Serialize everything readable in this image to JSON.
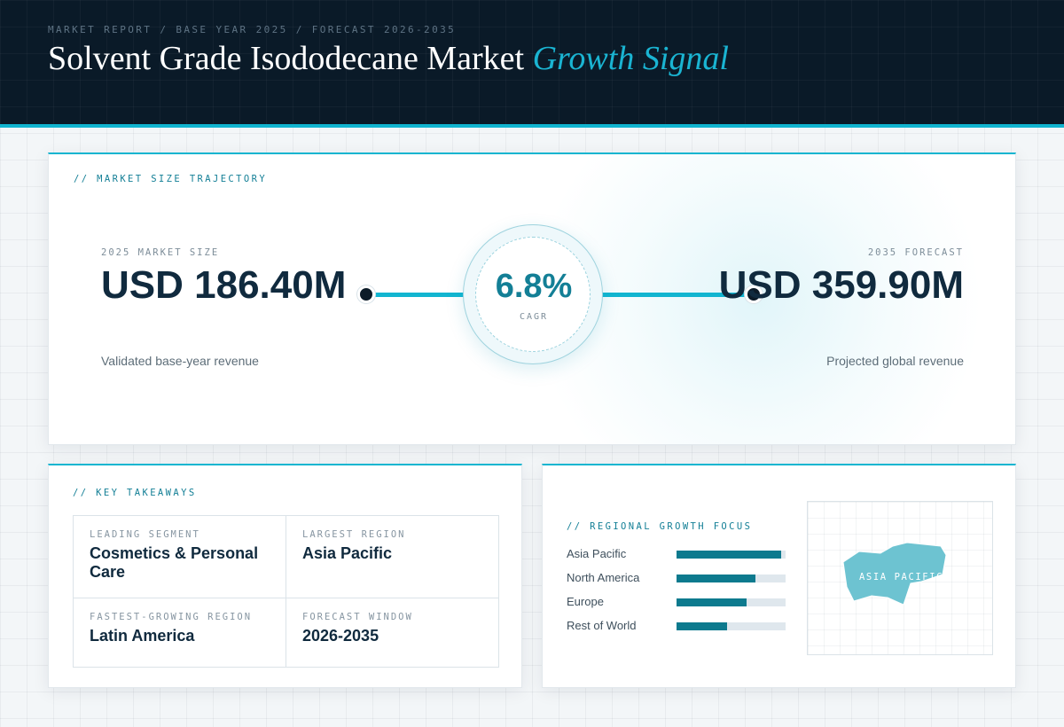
{
  "header": {
    "breadcrumb": "MARKET REPORT / BASE YEAR 2025 / FORECAST 2026-2035",
    "title_main": "Solvent Grade Isododecane Market ",
    "title_accent": "Growth Signal"
  },
  "trajectory": {
    "section_label": "// MARKET SIZE TRAJECTORY",
    "base": {
      "caption": "2025 MARKET SIZE",
      "value": "USD 186.40M",
      "subtitle": "Validated base-year revenue"
    },
    "forecast": {
      "caption": "2035 FORECAST",
      "value": "USD 359.90M",
      "subtitle": "Projected global revenue"
    },
    "cagr": {
      "value": "6.8%",
      "label": "CAGR"
    }
  },
  "takeaways": {
    "section_label": "// KEY TAKEAWAYS",
    "items": [
      {
        "caption": "LEADING SEGMENT",
        "value": "Cosmetics & Personal Care"
      },
      {
        "caption": "LARGEST REGION",
        "value": "Asia Pacific"
      },
      {
        "caption": "FASTEST-GROWING REGION",
        "value": "Latin America"
      },
      {
        "caption": "FORECAST WINDOW",
        "value": "2026-2035"
      }
    ]
  },
  "regional": {
    "section_label": "// REGIONAL GROWTH FOCUS",
    "bars": [
      {
        "name": "Asia Pacific",
        "level": 0.96
      },
      {
        "name": "North America",
        "level": 0.72
      },
      {
        "name": "Europe",
        "level": 0.64
      },
      {
        "name": "Rest of World",
        "level": 0.46
      }
    ],
    "map_label": "ASIA PACIFIC"
  },
  "colors": {
    "accent": "#12b5d0",
    "deep_accent": "#137f96",
    "bar_fill": "#0d7a8e",
    "header_bg": "#0a1a28",
    "map_shape": "#6dc3d1"
  }
}
